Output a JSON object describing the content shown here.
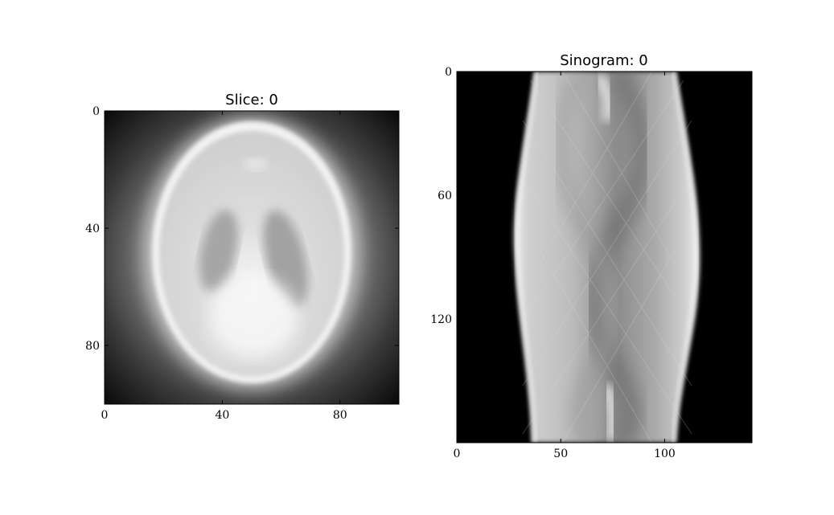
{
  "panels": [
    {
      "title": "Slice: 0",
      "x_ticks": [
        {
          "label": "0",
          "value": 0
        },
        {
          "label": "40",
          "value": 40
        },
        {
          "label": "80",
          "value": 80
        }
      ],
      "y_ticks": [
        {
          "label": "0",
          "value": 0
        },
        {
          "label": "40",
          "value": 40
        },
        {
          "label": "80",
          "value": 80
        }
      ],
      "x_range": [
        0,
        100
      ],
      "y_range": [
        0,
        100
      ],
      "image": "grayscale phantom slice"
    },
    {
      "title": "Sinogram: 0",
      "x_ticks": [
        {
          "label": "0",
          "value": 0
        },
        {
          "label": "50",
          "value": 50
        },
        {
          "label": "100",
          "value": 100
        }
      ],
      "y_ticks": [
        {
          "label": "0",
          "value": 0
        },
        {
          "label": "60",
          "value": 60
        },
        {
          "label": "120",
          "value": 120
        }
      ],
      "x_range": [
        0,
        142
      ],
      "y_range": [
        0,
        180
      ],
      "image": "grayscale sinogram"
    }
  ]
}
